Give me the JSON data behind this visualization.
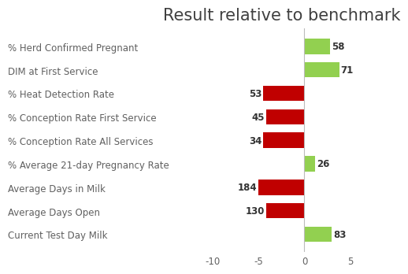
{
  "title": "Result relative to benchmark",
  "categories": [
    "% Herd Confirmed Pregnant",
    "DIM at First Service",
    "% Heat Detection Rate",
    "% Conception Rate First Service",
    "% Conception Rate All Services",
    "% Average 21-day Pregnancy Rate",
    "Average Days in Milk",
    "Average Days Open",
    "Current Test Day Milk"
  ],
  "bar_values": [
    2.8,
    3.8,
    -4.5,
    -4.2,
    -4.5,
    1.2,
    -5.0,
    -4.2,
    3.0
  ],
  "bar_labels": [
    "58",
    "71",
    "53",
    "45",
    "34",
    "26",
    "184",
    "130",
    "83"
  ],
  "bar_colors": [
    "#92d050",
    "#92d050",
    "#c00000",
    "#c00000",
    "#c00000",
    "#92d050",
    "#c00000",
    "#c00000",
    "#92d050"
  ],
  "xlim": [
    -11.5,
    6.5
  ],
  "xticks": [
    -10,
    -5,
    0,
    5
  ],
  "title_fontsize": 15,
  "label_fontsize": 8.5,
  "tick_fontsize": 8.5,
  "value_fontsize": 8.5,
  "background_color": "#ffffff",
  "bar_height": 0.65,
  "title_color": "#404040",
  "label_color": "#606060",
  "tick_color": "#606060",
  "value_color": "#333333",
  "vline_color": "#bbbbbb"
}
